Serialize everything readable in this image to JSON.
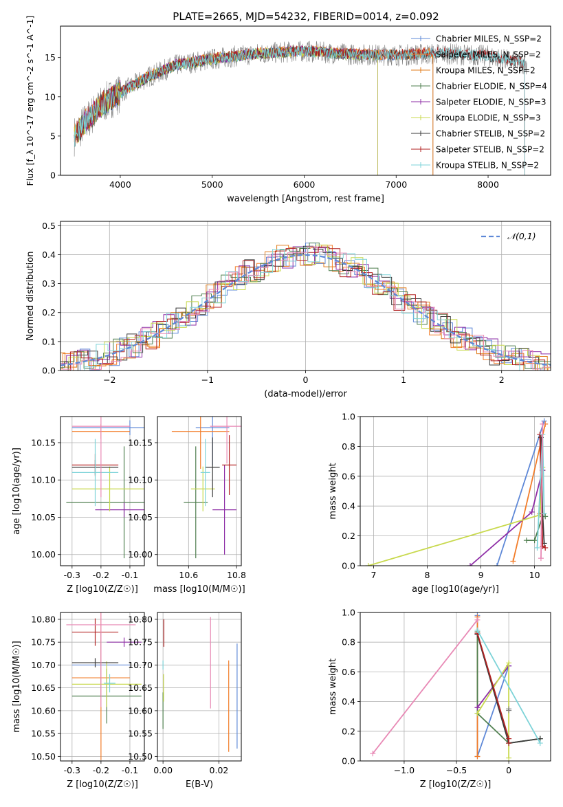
{
  "figure": {
    "title": "PLATE=2665, MJD=54232, FIBERID=0014, z=0.092"
  },
  "chart_data": [
    {
      "id": "spectrum",
      "type": "line",
      "xlabel": "wavelength [Angstrom, rest frame]",
      "ylabel": "Flux [f_λ 10^-17 erg cm^-2 s^-1 A^-1]",
      "xlim": [
        3350,
        8680
      ],
      "ylim": [
        0,
        19
      ],
      "xticks": [
        4000,
        5000,
        6000,
        7000,
        8000
      ],
      "yticks": [
        0,
        5,
        10,
        15
      ],
      "legend": "top-right",
      "grid": false,
      "series": [
        {
          "name": "Chabrier MILES, N_SSP=2",
          "color": "#5e88d7",
          "x": [
            3500,
            3600,
            3800,
            4000,
            4300,
            4600,
            5000,
            5500,
            6000,
            6500,
            7000,
            7400
          ],
          "y": [
            5.0,
            6.5,
            9.0,
            10.5,
            12.5,
            14.0,
            14.8,
            15.5,
            15.8,
            15.4,
            15.3,
            15.6
          ]
        },
        {
          "name": "Salpeter MILES, N_SSP=2",
          "color": "#f27d2a",
          "x": [
            3500,
            3600,
            3800,
            4000,
            4300,
            4600,
            5000,
            5500,
            6000,
            6500,
            7000,
            7400
          ],
          "y": [
            5.2,
            6.6,
            9.1,
            10.6,
            12.6,
            14.1,
            14.9,
            15.6,
            15.9,
            15.5,
            15.4,
            15.7
          ]
        },
        {
          "name": "Kroupa MILES, N_SSP=2",
          "color": "#e07b1a",
          "x": [
            3500,
            3600,
            3800,
            4000,
            4300,
            4600,
            5000,
            5500,
            6000,
            6500,
            7000,
            7400
          ],
          "y": [
            5.1,
            6.6,
            9.0,
            10.6,
            12.5,
            14.0,
            14.9,
            15.5,
            15.8,
            15.5,
            15.3,
            15.6
          ]
        },
        {
          "name": "Chabrier ELODIE, N_SSP=4",
          "color": "#4f7f4f",
          "x": [
            3500,
            3600,
            3800,
            4000,
            4300,
            4600,
            5000,
            5500,
            6000,
            6500,
            6800
          ],
          "y": [
            5.0,
            6.4,
            9.0,
            10.5,
            12.4,
            14.0,
            14.7,
            15.4,
            15.8,
            15.3,
            15.2
          ]
        },
        {
          "name": "Salpeter ELODIE, N_SSP=3",
          "color": "#8e2ea6",
          "x": [
            3500,
            3600,
            3800,
            4000,
            4300,
            4600,
            5000,
            5500,
            6000,
            6500,
            6800
          ],
          "y": [
            5.1,
            6.5,
            9.1,
            10.6,
            12.5,
            14.1,
            14.8,
            15.5,
            15.9,
            15.4,
            15.3
          ]
        },
        {
          "name": "Kroupa ELODIE, N_SSP=3",
          "color": "#c8d94d",
          "x": [
            3500,
            3600,
            3800,
            4000,
            4300,
            4600,
            5000,
            5500,
            6000,
            6500,
            6800
          ],
          "y": [
            5.0,
            6.5,
            9.0,
            10.5,
            12.5,
            14.0,
            14.8,
            15.5,
            15.8,
            15.4,
            15.2
          ]
        },
        {
          "name": "Chabrier STELIB, N_SSP=2",
          "color": "#3a3a3a",
          "x": [
            3500,
            3600,
            3800,
            4000,
            4300,
            4600,
            5000,
            5500,
            6000,
            6500,
            7000,
            7500,
            8000,
            8400
          ],
          "y": [
            5.0,
            6.5,
            9.0,
            10.5,
            12.5,
            14.0,
            14.8,
            15.5,
            15.8,
            15.4,
            15.3,
            15.5,
            15.2,
            14.2
          ]
        },
        {
          "name": "Salpeter STELIB, N_SSP=2",
          "color": "#b22222",
          "x": [
            3500,
            3600,
            3800,
            4000,
            4300,
            4600,
            5000,
            5500,
            6000,
            6500,
            7000,
            7500,
            8000,
            8400
          ],
          "y": [
            5.2,
            6.6,
            9.1,
            10.6,
            12.6,
            14.1,
            14.9,
            15.6,
            15.9,
            15.5,
            15.4,
            15.7,
            15.3,
            14.3
          ]
        },
        {
          "name": "Kroupa STELIB, N_SSP=2",
          "color": "#7dd3d8",
          "x": [
            3500,
            3600,
            3800,
            4000,
            4300,
            4600,
            5000,
            5500,
            6000,
            6500,
            7000,
            7500,
            8000,
            8400
          ],
          "y": [
            5.1,
            6.5,
            9.0,
            10.5,
            12.5,
            14.0,
            14.8,
            15.5,
            15.8,
            15.4,
            15.3,
            15.6,
            15.2,
            14.2
          ]
        }
      ],
      "observed_color": "#808080"
    },
    {
      "id": "residuals",
      "type": "line",
      "xlabel": "(data-model)/error",
      "ylabel": "Normed distribution",
      "xlim": [
        -2.5,
        2.5
      ],
      "ylim": [
        0,
        0.515
      ],
      "xticks": [
        -2,
        -1,
        0,
        1,
        2
      ],
      "yticks": [
        0.0,
        0.1,
        0.2,
        0.3,
        0.4,
        0.5
      ],
      "grid": true,
      "legend": "top-right",
      "reference_curve": {
        "name": "𝒩(0,1)",
        "color": "#5e88d7"
      },
      "histogram_colors": [
        "#5e88d7",
        "#f27d2a",
        "#e07b1a",
        "#4f7f4f",
        "#8e2ea6",
        "#c8d94d",
        "#3a3a3a",
        "#b22222",
        "#7dd3d8",
        "#e889b5"
      ]
    },
    {
      "id": "age-vs-Z",
      "type": "scatter",
      "xlabel": "Z [log10(Z/Z☉)]",
      "ylabel": "age  [log10(age/yr)]",
      "xlim": [
        -0.34,
        -0.05
      ],
      "ylim": [
        9.985,
        10.185
      ],
      "xticks": [
        -0.3,
        -0.2,
        -0.1
      ],
      "yticks": [
        10.0,
        10.05,
        10.1,
        10.15
      ],
      "grid": true,
      "points": [
        {
          "color": "#5e88d7",
          "x": -0.1,
          "y": 10.17,
          "xerr": 0.2,
          "yerr": 0.01
        },
        {
          "color": "#f27d2a",
          "x": -0.2,
          "y": 10.165,
          "xerr": 0.1,
          "yerr": 0.01
        },
        {
          "color": "#4f7f4f",
          "x": -0.12,
          "y": 10.07,
          "xerr": 0.2,
          "yerr": 0.075
        },
        {
          "color": "#8e2ea6",
          "x": -0.12,
          "y": 10.06,
          "xerr": 0.1,
          "yerr": 0.01
        },
        {
          "color": "#c8d94d",
          "x": -0.17,
          "y": 10.088,
          "xerr": 0.13,
          "yerr": 0.03
        },
        {
          "color": "#3a3a3a",
          "x": -0.22,
          "y": 10.117,
          "xerr": 0.08,
          "yerr": 0.01
        },
        {
          "color": "#b22222",
          "x": -0.22,
          "y": 10.12,
          "xerr": 0.08,
          "yerr": 0.015
        },
        {
          "color": "#7dd3d8",
          "x": -0.22,
          "y": 10.11,
          "xerr": 0.08,
          "yerr": 0.045
        },
        {
          "color": "#e889b5",
          "x": -0.2,
          "y": 10.172,
          "xerr": 0.1,
          "yerr": 0.095
        }
      ]
    },
    {
      "id": "age-vs-mass",
      "type": "scatter",
      "xlabel": "mass [log10(M/M☉)]",
      "ylabel": "",
      "xlim": [
        10.47,
        10.82
      ],
      "ylim": [
        9.985,
        10.185
      ],
      "xticks": [
        10.6,
        10.8
      ],
      "yticks": [
        10.0,
        10.05,
        10.1,
        10.15
      ],
      "grid": true,
      "points": [
        {
          "color": "#5e88d7",
          "x": 10.7,
          "y": 10.17,
          "xerr": 0.07,
          "yerr": 0.05
        },
        {
          "color": "#f27d2a",
          "x": 10.65,
          "y": 10.165,
          "xerr": 0.12,
          "yerr": 0.05
        },
        {
          "color": "#4f7f4f",
          "x": 10.63,
          "y": 10.07,
          "xerr": 0.05,
          "yerr": 0.075
        },
        {
          "color": "#8e2ea6",
          "x": 10.75,
          "y": 10.06,
          "xerr": 0.05,
          "yerr": 0.06
        },
        {
          "color": "#c8d94d",
          "x": 10.66,
          "y": 10.088,
          "xerr": 0.05,
          "yerr": 0.03
        },
        {
          "color": "#3a3a3a",
          "x": 10.7,
          "y": 10.117,
          "xerr": 0.03,
          "yerr": 0.04
        },
        {
          "color": "#b22222",
          "x": 10.77,
          "y": 10.12,
          "xerr": 0.03,
          "yerr": 0.04
        },
        {
          "color": "#7dd3d8",
          "x": 10.67,
          "y": 10.11,
          "xerr": 0.02,
          "yerr": 0.045
        },
        {
          "color": "#e889b5",
          "x": 10.76,
          "y": 10.172,
          "xerr": 0.07,
          "yerr": 0.05
        }
      ]
    },
    {
      "id": "mass-weight-vs-age",
      "type": "line",
      "xlabel": "age  [log10(age/yr)]",
      "ylabel": "mass weight",
      "xlim": [
        6.75,
        10.3
      ],
      "ylim": [
        0,
        1.0
      ],
      "xticks": [
        7,
        8,
        9,
        10
      ],
      "yticks": [
        0.0,
        0.2,
        0.4,
        0.6,
        0.8,
        1.0
      ],
      "grid": true,
      "series": [
        {
          "color": "#5e88d7",
          "x": [
            9.3,
            10.18
          ],
          "y": [
            0.0,
            0.97
          ]
        },
        {
          "color": "#f27d2a",
          "x": [
            9.6,
            10.2
          ],
          "y": [
            0.03,
            0.95
          ]
        },
        {
          "color": "#e07b1a",
          "x": [
            10.1,
            10.15
          ],
          "y": [
            0.35,
            0.64
          ]
        },
        {
          "color": "#4f7f4f",
          "x": [
            9.85,
            10.0,
            10.15,
            10.2
          ],
          "y": [
            0.17,
            0.17,
            0.33,
            0.33
          ]
        },
        {
          "color": "#8e2ea6",
          "x": [
            8.8,
            9.95,
            10.15
          ],
          "y": [
            0.0,
            0.36,
            0.64
          ]
        },
        {
          "color": "#c8d94d",
          "x": [
            6.9,
            10.1,
            10.15
          ],
          "y": [
            0.0,
            0.34,
            0.66
          ]
        },
        {
          "color": "#3a3a3a",
          "x": [
            10.12,
            10.15,
            10.18
          ],
          "y": [
            0.86,
            0.35,
            0.15
          ]
        },
        {
          "color": "#b22222",
          "x": [
            10.1,
            10.15,
            10.2
          ],
          "y": [
            0.88,
            0.13,
            0.12
          ]
        },
        {
          "color": "#7dd3d8",
          "x": [
            10.05,
            10.15,
            10.18
          ],
          "y": [
            0.12,
            0.88,
            0.35
          ]
        },
        {
          "color": "#e889b5",
          "x": [
            10.12,
            10.15
          ],
          "y": [
            0.05,
            0.95
          ]
        }
      ]
    },
    {
      "id": "mass-vs-Z",
      "type": "scatter",
      "xlabel": "Z [log10(Z/Z☉)]",
      "ylabel": "mass [log10(M/M☉)]",
      "xlim": [
        -0.34,
        -0.05
      ],
      "ylim": [
        10.49,
        10.815
      ],
      "xticks": [
        -0.3,
        -0.2,
        -0.1
      ],
      "yticks": [
        10.5,
        10.55,
        10.6,
        10.65,
        10.7,
        10.75,
        10.8
      ],
      "grid": true,
      "points": [
        {
          "color": "#5e88d7",
          "x": -0.2,
          "y": 10.7,
          "xerr": 0.1,
          "yerr": 0.07
        },
        {
          "color": "#f27d2a",
          "x": -0.2,
          "y": 10.672,
          "xerr": 0.1,
          "yerr": 0.18
        },
        {
          "color": "#4f7f4f",
          "x": -0.18,
          "y": 10.632,
          "xerr": 0.12,
          "yerr": 0.06
        },
        {
          "color": "#8e2ea6",
          "x": -0.12,
          "y": 10.75,
          "xerr": 0.06,
          "yerr": 0.01
        },
        {
          "color": "#c8d94d",
          "x": -0.18,
          "y": 10.658,
          "xerr": 0.12,
          "yerr": 0.05
        },
        {
          "color": "#3a3a3a",
          "x": -0.22,
          "y": 10.705,
          "xerr": 0.08,
          "yerr": 0.01
        },
        {
          "color": "#b22222",
          "x": -0.22,
          "y": 10.772,
          "xerr": 0.08,
          "yerr": 0.03
        },
        {
          "color": "#7dd3d8",
          "x": -0.17,
          "y": 10.66,
          "xerr": 0.02,
          "yerr": 0.02
        },
        {
          "color": "#e889b5",
          "x": -0.2,
          "y": 10.788,
          "xerr": 0.12,
          "yerr": 0.18
        }
      ]
    },
    {
      "id": "mass-vs-ebv",
      "type": "scatter",
      "xlabel": "E(B-V)",
      "ylabel": "",
      "xlim": [
        -0.002,
        0.028
      ],
      "ylim": [
        10.49,
        10.815
      ],
      "xticks": [
        0.0,
        0.02
      ],
      "yticks": [
        10.5,
        10.55,
        10.6,
        10.65,
        10.7,
        10.75,
        10.8
      ],
      "grid": true,
      "points": [
        {
          "color": "#5e88d7",
          "x": 0.0265,
          "y": 10.632,
          "xerr": 0,
          "yerr": 0.115
        },
        {
          "color": "#f27d2a",
          "x": 0.0235,
          "y": 10.61,
          "xerr": 0,
          "yerr": 0.1
        },
        {
          "color": "#4f7f4f",
          "x": 0.0,
          "y": 10.6,
          "xerr": 0,
          "yerr": 0.04
        },
        {
          "color": "#b22222",
          "x": 0.0003,
          "y": 10.77,
          "xerr": 0,
          "yerr": 0.03
        },
        {
          "color": "#c8d94d",
          "x": 0.0002,
          "y": 10.65,
          "xerr": 0,
          "yerr": 0.03
        },
        {
          "color": "#e889b5",
          "x": 0.017,
          "y": 10.705,
          "xerr": 0,
          "yerr": 0.1
        },
        {
          "color": "#7dd3d8",
          "x": 0.0,
          "y": 10.7,
          "xerr": 0,
          "yerr": 0.01
        }
      ]
    },
    {
      "id": "mass-weight-vs-Z",
      "type": "line",
      "xlabel": "Z [log10(Z/Z☉)]",
      "ylabel": "mass weight",
      "xlim": [
        -1.42,
        0.4
      ],
      "ylim": [
        0,
        1.0
      ],
      "xticks": [
        -1.0,
        -0.5,
        0.0
      ],
      "yticks": [
        0.0,
        0.2,
        0.4,
        0.6,
        0.8,
        1.0
      ],
      "grid": true,
      "series": [
        {
          "color": "#5e88d7",
          "x": [
            -0.3,
            -0.3,
            0.0
          ],
          "y": [
            0.98,
            0.03,
            0.64
          ]
        },
        {
          "color": "#f27d2a",
          "x": [
            -0.3,
            -0.3
          ],
          "y": [
            0.97,
            0.03
          ]
        },
        {
          "color": "#4f7f4f",
          "x": [
            -0.3,
            -0.3,
            0.0,
            0.3
          ],
          "y": [
            0.87,
            0.32,
            0.12,
            0.15
          ]
        },
        {
          "color": "#8e2ea6",
          "x": [
            -0.3,
            0.0
          ],
          "y": [
            0.36,
            0.64
          ]
        },
        {
          "color": "#c8d94d",
          "x": [
            -0.3,
            0.0,
            0.0
          ],
          "y": [
            0.32,
            0.66,
            0.02
          ]
        },
        {
          "color": "#3a3a3a",
          "x": [
            -0.3,
            0.0,
            0.3
          ],
          "y": [
            0.85,
            0.12,
            0.15
          ]
        },
        {
          "color": "#b22222",
          "x": [
            -0.3,
            0.0,
            0.0
          ],
          "y": [
            0.86,
            0.15,
            0.12
          ]
        },
        {
          "color": "#7dd3d8",
          "x": [
            -0.3,
            0.3
          ],
          "y": [
            0.88,
            0.12
          ]
        },
        {
          "color": "#e889b5",
          "x": [
            -1.3,
            -0.3
          ],
          "y": [
            0.05,
            0.95
          ]
        },
        {
          "color": "#808080",
          "x": [
            0.0,
            0.0
          ],
          "y": [
            0.35,
            0.34
          ]
        }
      ]
    }
  ]
}
